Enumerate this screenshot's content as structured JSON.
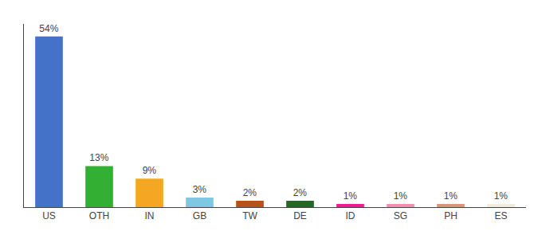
{
  "chart_data": {
    "type": "bar",
    "categories": [
      "US",
      "OTH",
      "IN",
      "GB",
      "TW",
      "DE",
      "ID",
      "SG",
      "PH",
      "ES"
    ],
    "values": [
      54,
      13,
      9,
      3,
      2,
      2,
      1,
      1,
      1,
      1
    ],
    "value_labels": [
      "54%",
      "13%",
      "9%",
      "3%",
      "2%",
      "2%",
      "1%",
      "1%",
      "1%",
      "1%"
    ],
    "data_labels": true,
    "colors": [
      "#4472c9",
      "#33b033",
      "#f5a623",
      "#7ec8e3",
      "#b5521b",
      "#266626",
      "#e91e8c",
      "#f48fb1",
      "#d9967a",
      "#f0ede0"
    ],
    "ylim": [
      0,
      58
    ],
    "grid": false,
    "tick_labels": "x"
  }
}
